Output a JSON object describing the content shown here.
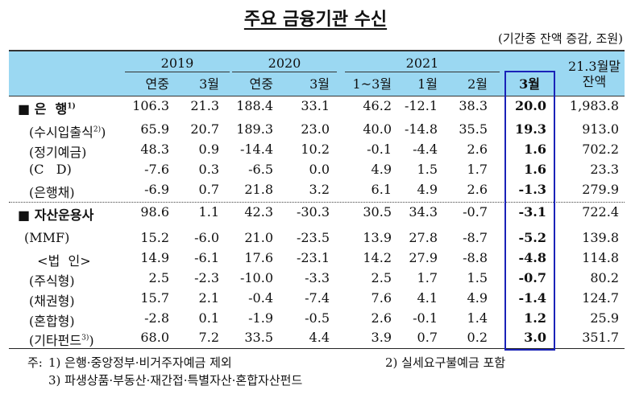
{
  "title": "주요 금융기관 수신",
  "unit": "(기간중 잔액 증감, 조원)",
  "header": {
    "years": [
      "2019",
      "2020",
      "2021"
    ],
    "balance_label_line1": "21.3월말",
    "balance_label_line2": "잔액",
    "sub": [
      "연중",
      "3월",
      "연중",
      "3월",
      "1~3월",
      "1월",
      "2월",
      "3월"
    ]
  },
  "highlight_color": "#1a22b8",
  "header_bg": "#9bd8f2",
  "rows": [
    {
      "label": "■ 은  행",
      "sup": "1)",
      "bold": true,
      "values": [
        "106.3",
        "21.3",
        "188.4",
        "33.1",
        "46.2",
        "-12.1",
        "38.3",
        "20.0",
        "1,983.8"
      ]
    },
    {
      "label": "(수시입출식",
      "sup": "2)",
      "suffix": ")",
      "values": [
        "65.9",
        "20.7",
        "189.3",
        "23.0",
        "40.0",
        "-14.8",
        "35.5",
        "19.3",
        "913.0"
      ]
    },
    {
      "label": "(정기예금)",
      "values": [
        "48.3",
        "0.9",
        "-14.4",
        "10.2",
        "-0.1",
        "-4.4",
        "2.6",
        "1.6",
        "702.2"
      ]
    },
    {
      "label": "(C   D)",
      "values": [
        "-7.6",
        "0.3",
        "-6.5",
        "0.0",
        "4.9",
        "1.5",
        "1.7",
        "1.6",
        "23.3"
      ]
    },
    {
      "label": "(은행채)",
      "values": [
        "-6.9",
        "0.7",
        "21.8",
        "3.2",
        "6.1",
        "4.9",
        "2.6",
        "-1.3",
        "279.9"
      ]
    },
    {
      "label": "■ 자산운용사",
      "bold": true,
      "values": [
        "98.6",
        "1.1",
        "42.3",
        "-30.3",
        "30.5",
        "34.3",
        "-0.7",
        "-3.1",
        "722.4"
      ]
    },
    {
      "label": "(MMF)",
      "values": [
        "15.2",
        "-6.0",
        "21.0",
        "-23.5",
        "13.9",
        "27.8",
        "-8.7",
        "-5.2",
        "139.8"
      ]
    },
    {
      "label": "  <법  인>",
      "values": [
        "14.9",
        "-6.1",
        "17.6",
        "-23.1",
        "14.2",
        "27.9",
        "-8.8",
        "-4.8",
        "114.8"
      ]
    },
    {
      "label": "(주식형)",
      "values": [
        "2.5",
        "-2.3",
        "-10.0",
        "-3.3",
        "2.5",
        "1.7",
        "1.5",
        "-0.7",
        "80.2"
      ]
    },
    {
      "label": "(채권형)",
      "values": [
        "15.7",
        "2.1",
        "-0.4",
        "-7.4",
        "7.6",
        "4.1",
        "4.9",
        "-1.4",
        "124.7"
      ]
    },
    {
      "label": "(혼합형)",
      "values": [
        "-2.8",
        "0.1",
        "-1.9",
        "-0.5",
        "2.6",
        "-0.1",
        "1.4",
        "1.2",
        "25.9"
      ]
    },
    {
      "label": "(기타펀드",
      "sup": "3)",
      "suffix": ")",
      "values": [
        "68.0",
        "7.2",
        "33.5",
        "4.4",
        "3.9",
        "0.7",
        "0.2",
        "3.0",
        "351.7"
      ]
    }
  ],
  "notes": {
    "prefix": "주:",
    "n1": "1)  은행·중앙정부·비거주자예금  제외",
    "n2": "2)  실세요구불예금  포함",
    "n3": "3)  파생상품·부동산·재간접·특별자산·혼합자산펀드"
  }
}
